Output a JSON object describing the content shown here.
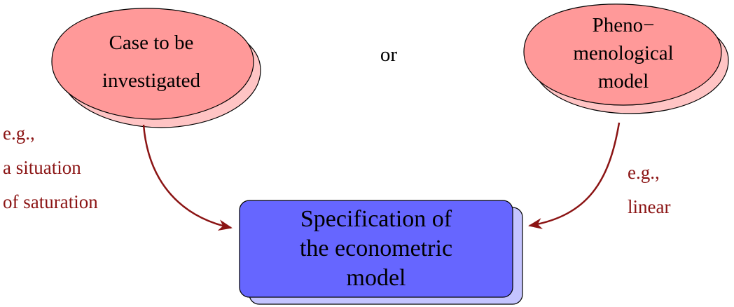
{
  "left_node": {
    "lines": [
      "Case to be",
      "investigated"
    ]
  },
  "right_node": {
    "lines": [
      "Pheno−",
      "menological",
      "model"
    ]
  },
  "connector": "or",
  "target_node": {
    "lines": [
      "Specification of",
      "the econometric",
      "model"
    ]
  },
  "left_annotation": {
    "lines": [
      "e.g.,",
      "a situation",
      "of saturation"
    ]
  },
  "right_annotation": {
    "lines": [
      "e.g.,",
      "linear"
    ]
  },
  "colors": {
    "ellipse_fill": "#ff9999",
    "ellipse_shadow": "#ffc4c4",
    "box_fill": "#6666ff",
    "box_shadow": "#c4c4ff",
    "arrow": "#8b1414",
    "annotation_text": "#8b1414"
  }
}
